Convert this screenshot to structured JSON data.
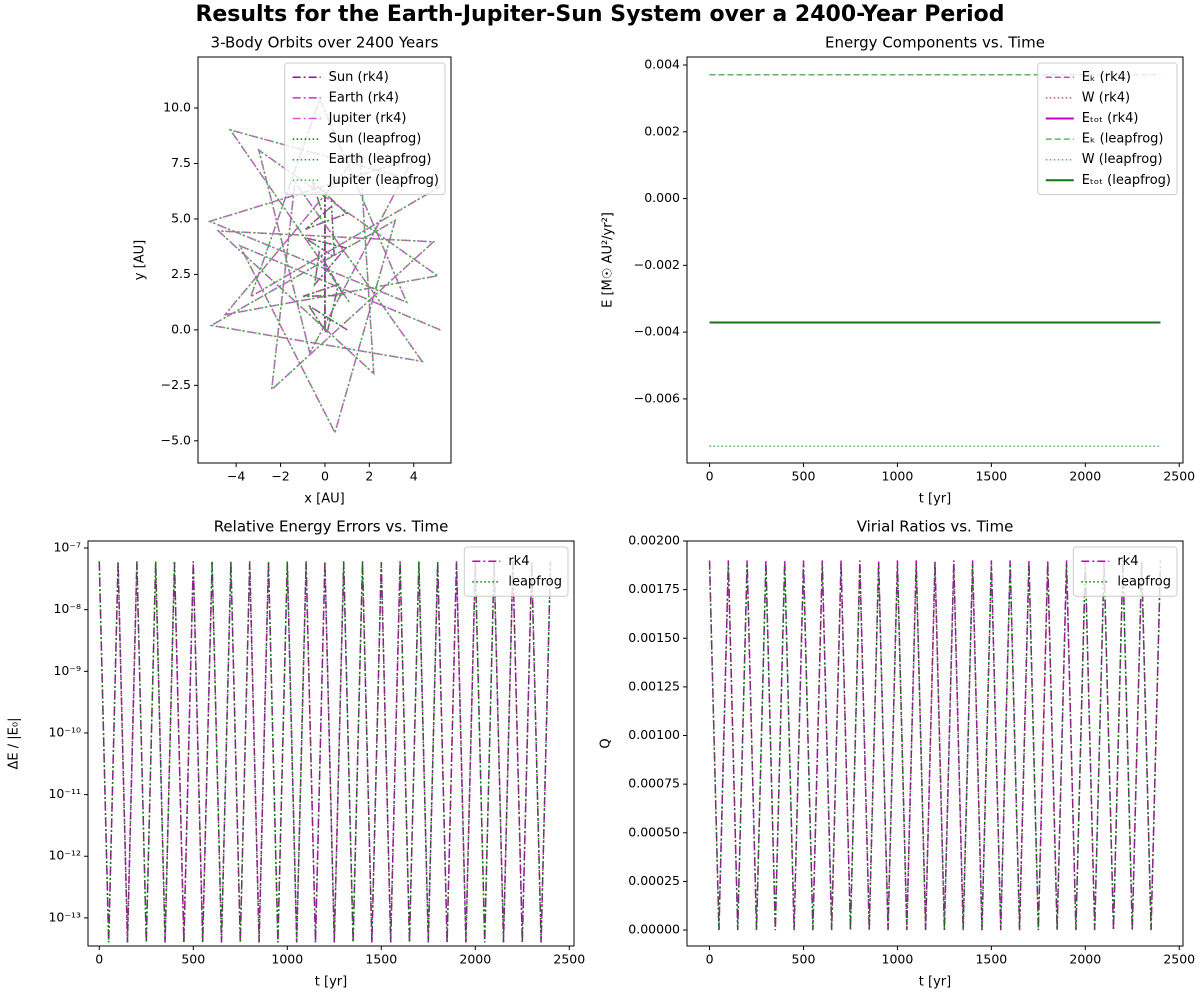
{
  "title": "Results for the Earth-Jupiter-Sun System over a 2400-Year Period",
  "chart_data": [
    {
      "type": "line",
      "title": "3-Body Orbits over 2400 Years",
      "x_label": "x [AU]",
      "y_label": "y [AU]",
      "legend": "upper right",
      "xlim": [
        -5.72,
        5.68
      ],
      "ylim": [
        -6.0,
        12.3
      ],
      "xticks": [
        {
          "value": -4,
          "label": "−4"
        },
        {
          "value": -2,
          "label": "−2"
        },
        0,
        2,
        4
      ],
      "yticks": [
        {
          "value": -5,
          "label": "−5.0"
        },
        {
          "value": -2.5,
          "label": "−2.5"
        },
        {
          "value": 0,
          "label": "0.0"
        },
        2.5,
        {
          "value": 5,
          "label": "5.0"
        },
        7.5,
        {
          "value": 10,
          "label": "10.0"
        }
      ],
      "series": [
        {
          "name": "Sun (rk4)",
          "color": "#a000a0",
          "linestyle": "dashdot",
          "x": [
            0,
            0
          ],
          "values": [
            0,
            6.3
          ]
        },
        {
          "name": "Earth (rk4)",
          "color": "#c833c8",
          "linestyle": "dashdot",
          "x": [
            1,
            -0.74,
            0.09,
            0.61,
            -0.99,
            0.84,
            -0.26,
            -0.46,
            0.94,
            -0.92,
            0.42,
            0.3,
            -0.87,
            0.98,
            -0.57,
            -0.13
          ],
          "values": [
            0,
            1.1,
            -0.16,
            2.05,
            1.51,
            1.56,
            3.49,
            2.05,
            3.7,
            4.16,
            3.29,
            5.57,
            4.54,
            5.24,
            6.7,
            5.31
          ]
        },
        {
          "name": "Jupiter (rk4)",
          "color": "#dd55dd",
          "linestyle": "dashdot",
          "x": [
            5.2,
            -3.83,
            0.45,
            3.17,
            -5.12,
            4.38,
            -1.35,
            -2.4,
            4.89,
            -4.8,
            2.2,
            1.57,
            -4.5,
            5.08,
            -2.98,
            -0.68,
            3.98,
            -5.19,
            3.68,
            -0.23,
            -3.34,
            5.15,
            -4.26,
            1.12
          ],
          "values": [
            0,
            3.79,
            -4.63,
            4.94,
            0.2,
            -1.42,
            6.66,
            -2.69,
            3.97,
            4.46,
            -1.97,
            7.97,
            0.69,
            2.44,
            8.1,
            -1.04,
            7.72,
            4.89,
            1.25,
            10.4,
            1.5,
            6.43,
            9.01,
            1.22
          ]
        },
        {
          "name": "Sun (leapfrog)",
          "color": "#007000",
          "linestyle": "dotted",
          "x": [
            0,
            0
          ],
          "values": [
            0,
            6.3
          ]
        },
        {
          "name": "Earth (leapfrog)",
          "color": "#229922",
          "linestyle": "dotted",
          "x": [
            1,
            -0.74,
            0.09,
            0.61,
            -0.99,
            0.84,
            -0.26,
            -0.46,
            0.94,
            -0.92,
            0.42,
            0.3,
            -0.87,
            0.98,
            -0.57,
            -0.13
          ],
          "values": [
            0,
            1.1,
            -0.16,
            2.05,
            1.51,
            1.56,
            3.49,
            2.05,
            3.7,
            4.16,
            3.29,
            5.57,
            4.54,
            5.24,
            6.7,
            5.31
          ]
        },
        {
          "name": "Jupiter (leapfrog)",
          "color": "#44aa44",
          "linestyle": "dotted",
          "x": [
            5.2,
            -3.83,
            0.45,
            3.17,
            -5.12,
            4.38,
            -1.35,
            -2.4,
            4.89,
            -4.8,
            2.2,
            1.57,
            -4.5,
            5.08,
            -2.98,
            -0.68,
            3.98,
            -5.19,
            3.68,
            -0.23,
            -3.34,
            5.15,
            -4.26,
            1.12
          ],
          "values": [
            0,
            3.79,
            -4.63,
            4.94,
            0.2,
            -1.42,
            6.66,
            -2.69,
            3.97,
            4.46,
            -1.97,
            7.97,
            0.69,
            2.44,
            8.1,
            -1.04,
            7.72,
            4.89,
            1.25,
            10.4,
            1.5,
            6.43,
            9.01,
            1.22
          ]
        }
      ]
    },
    {
      "type": "line",
      "title": "Energy Components vs. Time",
      "x_label": "t [yr]",
      "y_label": "E [M☉ AU²/yr²]",
      "legend": "upper right",
      "xlim": [
        -120,
        2520
      ],
      "ylim": [
        -0.00792,
        0.00424
      ],
      "xticks": [
        0,
        500,
        1000,
        1500,
        2000,
        2500
      ],
      "yticks": [
        {
          "value": -0.006,
          "label": "−0.006"
        },
        {
          "value": -0.004,
          "label": "−0.004"
        },
        {
          "value": -0.002,
          "label": "−0.002"
        },
        {
          "value": 0,
          "label": "0.000"
        },
        0.002,
        0.004
      ],
      "x": [
        0,
        2400
      ],
      "series": [
        {
          "name": "Eₖ (rk4)",
          "color": "#e040c0",
          "linestyle": "dashed",
          "values": [
            0.00371,
            0.00371
          ]
        },
        {
          "name": "W (rk4)",
          "color": "#e040c0",
          "linestyle": "dotted",
          "values": [
            -0.00742,
            -0.00742
          ]
        },
        {
          "name": "Eₜₒₜ (rk4)",
          "color": "#c000c0",
          "linestyle": "solid",
          "values": [
            -0.00371,
            -0.00371
          ]
        },
        {
          "name": "Eₖ (leapfrog)",
          "color": "#66b366",
          "linestyle": "dashed",
          "values": [
            0.00371,
            0.00371
          ]
        },
        {
          "name": "W (leapfrog)",
          "color": "#55bb55",
          "linestyle": "dotted",
          "values": [
            -0.00742,
            -0.00742
          ]
        },
        {
          "name": "Eₜₒₜ (leapfrog)",
          "color": "#117711",
          "linestyle": "solid",
          "values": [
            -0.00371,
            -0.00371
          ]
        }
      ]
    },
    {
      "type": "line",
      "title": "Relative Energy Errors vs. Time",
      "x_label": "t [yr]",
      "y_label": "ΔE / |E₀|",
      "legend": "upper right",
      "yscale": "log",
      "xlim": [
        -60,
        2525
      ],
      "ylim": [
        3.5e-14,
        1.3e-07
      ],
      "xticks": [
        0,
        500,
        1000,
        1500,
        2000,
        2500
      ],
      "yticks": [
        {
          "value": 1e-13,
          "label": "10⁻¹³"
        },
        {
          "value": 1e-12,
          "label": "10⁻¹²"
        },
        {
          "value": 1e-11,
          "label": "10⁻¹¹"
        },
        {
          "value": 1e-10,
          "label": "10⁻¹⁰"
        },
        {
          "value": 1e-09,
          "label": "10⁻⁹"
        },
        {
          "value": 1e-08,
          "label": "10⁻⁸"
        },
        {
          "value": 1e-07,
          "label": "10⁻⁷"
        }
      ],
      "x": [
        0,
        50,
        100,
        150,
        200,
        250,
        300,
        350,
        400,
        450,
        500,
        550,
        600,
        650,
        700,
        750,
        800,
        850,
        900,
        950,
        1000,
        1050,
        1100,
        1150,
        1200,
        1250,
        1300,
        1350,
        1400,
        1450,
        1500,
        1550,
        1600,
        1650,
        1700,
        1750,
        1800,
        1850,
        1900,
        1950,
        2000,
        2050,
        2100,
        2150,
        2200,
        2250,
        2300,
        2350,
        2400
      ],
      "series": [
        {
          "name": "rk4",
          "color": "#c000c0",
          "linestyle": "dashdot",
          "values": [
            5.9e-08,
            4e-14,
            5.9e-08,
            4e-14,
            5.9e-08,
            4e-14,
            5.9e-08,
            4e-14,
            5.9e-08,
            4e-14,
            5.9e-08,
            4e-14,
            5.9e-08,
            4e-14,
            5.9e-08,
            4e-14,
            5.9e-08,
            4e-14,
            5.9e-08,
            4e-14,
            5.9e-08,
            4e-14,
            5.9e-08,
            4e-14,
            5.9e-08,
            4e-14,
            5.9e-08,
            4e-14,
            5.9e-08,
            4e-14,
            5.9e-08,
            4e-14,
            5.9e-08,
            4e-14,
            5.9e-08,
            4e-14,
            5.9e-08,
            4e-14,
            5.9e-08,
            4e-14,
            5.9e-08,
            4e-14,
            5.9e-08,
            4e-14,
            5.9e-08,
            4e-14,
            5.9e-08,
            4e-14,
            5.9e-08
          ]
        },
        {
          "name": "leapfrog",
          "color": "#008000",
          "linestyle": "dotted",
          "values": [
            6.1e-08,
            4e-14,
            6.1e-08,
            4e-14,
            6.1e-08,
            4e-14,
            6.1e-08,
            4e-14,
            6.1e-08,
            4e-14,
            6.1e-08,
            4e-14,
            6.1e-08,
            4e-14,
            6.1e-08,
            4e-14,
            6.1e-08,
            4e-14,
            6.1e-08,
            4e-14,
            6.1e-08,
            4e-14,
            6.1e-08,
            4e-14,
            6.1e-08,
            4e-14,
            6.1e-08,
            4e-14,
            6.1e-08,
            4e-14,
            6.1e-08,
            4e-14,
            6.1e-08,
            4e-14,
            6.1e-08,
            4e-14,
            6.1e-08,
            4e-14,
            6.1e-08,
            4e-14,
            6.1e-08,
            4e-14,
            6.1e-08,
            4e-14,
            6.1e-08,
            4e-14,
            6.1e-08,
            4e-14,
            6.1e-08
          ]
        }
      ]
    },
    {
      "type": "line",
      "title": "Virial Ratios vs. Time",
      "x_label": "t [yr]",
      "y_label": "Q",
      "legend": "upper right",
      "xlim": [
        -120,
        2520
      ],
      "ylim": [
        -8.2e-05,
        0.002
      ],
      "xticks": [
        0,
        500,
        1000,
        1500,
        2000,
        2500
      ],
      "yticks": [
        {
          "value": 0,
          "label": "0.00000"
        },
        {
          "value": 0.00025,
          "label": "0.00025"
        },
        {
          "value": 0.0005,
          "label": "0.00050"
        },
        {
          "value": 0.00075,
          "label": "0.00075"
        },
        {
          "value": 0.001,
          "label": "0.00100"
        },
        {
          "value": 0.00125,
          "label": "0.00125"
        },
        {
          "value": 0.0015,
          "label": "0.00150"
        },
        {
          "value": 0.00175,
          "label": "0.00175"
        },
        {
          "value": 0.002,
          "label": "0.00200"
        }
      ],
      "x": [
        0,
        50,
        100,
        150,
        200,
        250,
        300,
        350,
        400,
        450,
        500,
        550,
        600,
        650,
        700,
        750,
        800,
        850,
        900,
        950,
        1000,
        1050,
        1100,
        1150,
        1200,
        1250,
        1300,
        1350,
        1400,
        1450,
        1500,
        1550,
        1600,
        1650,
        1700,
        1750,
        1800,
        1850,
        1900,
        1950,
        2000,
        2050,
        2100,
        2150,
        2200,
        2250,
        2300,
        2350,
        2400
      ],
      "series": [
        {
          "name": "rk4",
          "color": "#c000c0",
          "linestyle": "dashdot",
          "values": [
            0.0019,
            0,
            0.0019,
            0,
            0.0019,
            0,
            0.0019,
            0,
            0.0019,
            0,
            0.0019,
            0,
            0.0019,
            0,
            0.0019,
            0,
            0.0019,
            0,
            0.0019,
            0,
            0.0019,
            0,
            0.0019,
            0,
            0.0019,
            0,
            0.0019,
            0,
            0.0019,
            0,
            0.0019,
            0,
            0.0019,
            0,
            0.0019,
            0,
            0.0019,
            0,
            0.0019,
            0,
            0.0019,
            0,
            0.0019,
            0,
            0.0019,
            0,
            0.0019,
            0,
            0.0019
          ]
        },
        {
          "name": "leapfrog",
          "color": "#008000",
          "linestyle": "dotted",
          "values": [
            0.00188,
            0,
            0.00188,
            0,
            0.00188,
            0,
            0.00188,
            0,
            0.00188,
            0,
            0.00188,
            0,
            0.00188,
            0,
            0.00188,
            0,
            0.00188,
            0,
            0.00188,
            0,
            0.00188,
            0,
            0.00188,
            0,
            0.00188,
            0,
            0.00188,
            0,
            0.00188,
            0,
            0.00188,
            0,
            0.00188,
            0,
            0.00188,
            0,
            0.00188,
            0,
            0.00188,
            0,
            0.00188,
            0,
            0.00188,
            0,
            0.00188,
            0,
            0.00188,
            0,
            0.00188
          ]
        }
      ]
    }
  ]
}
